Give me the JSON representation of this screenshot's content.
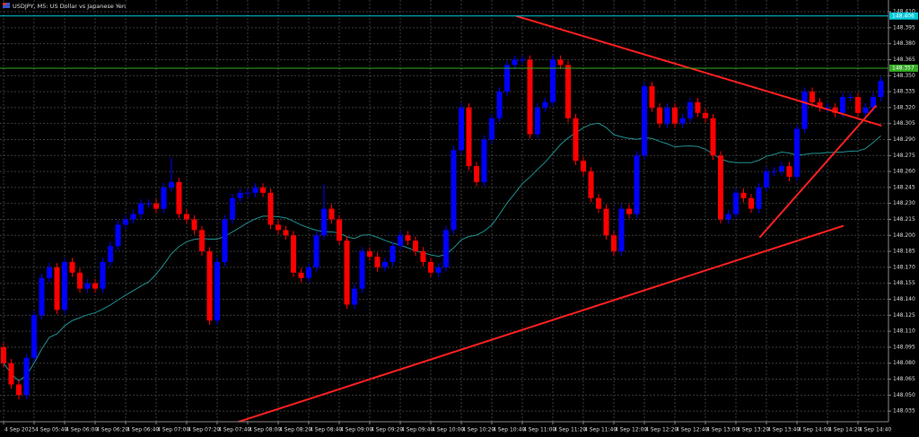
{
  "chart_data": {
    "type": "candlestick",
    "title": "USDJPY, M5:  US Dollar vs Japanese Yen",
    "categories": [
      "4 Sep 2025",
      null,
      null,
      null,
      "4 Sep 05:40",
      null,
      null,
      null,
      "4 Sep 06:00",
      null,
      null,
      null,
      "4 Sep 06:20",
      null,
      null,
      null,
      "4 Sep 06:40",
      null,
      null,
      null,
      "4 Sep 07:00",
      null,
      null,
      null,
      "4 Sep 07:20",
      null,
      null,
      null,
      "4 Sep 07:40",
      null,
      null,
      null,
      "4 Sep 08:00",
      null,
      null,
      null,
      "4 Sep 08:20",
      null,
      null,
      null,
      "4 Sep 08:40",
      null,
      null,
      null,
      "4 Sep 09:00",
      null,
      null,
      null,
      "4 Sep 09:20",
      null,
      null,
      null,
      "4 Sep 09:40",
      null,
      null,
      null,
      "4 Sep 10:00",
      null,
      null,
      null,
      "4 Sep 10:20",
      null,
      null,
      null,
      "4 Sep 10:40",
      null,
      null,
      null,
      "4 Sep 11:00",
      null,
      null,
      null,
      "4 Sep 11:20",
      null,
      null,
      null,
      "4 Sep 11:40",
      null,
      null,
      null,
      "4 Sep 12:00",
      null,
      null,
      null,
      "4 Sep 12:20",
      null,
      null,
      null,
      "4 Sep 12:40",
      null,
      null,
      null,
      "4 Sep 13:00",
      null,
      null,
      null,
      "4 Sep 13:20",
      null,
      null,
      null,
      "4 Sep 13:40",
      null,
      null,
      null,
      "4 Sep 14:00",
      null,
      null,
      null,
      "4 Sep 14:20",
      null,
      null,
      null,
      "4 Sep 14:40",
      null,
      null,
      null
    ],
    "open": [
      148.095,
      148.08,
      148.06,
      148.05,
      148.085,
      148.125,
      148.16,
      148.17,
      148.13,
      148.175,
      148.165,
      148.15,
      148.155,
      148.15,
      148.175,
      148.19,
      148.21,
      148.215,
      148.22,
      148.23,
      148.23,
      148.225,
      148.245,
      148.25,
      148.22,
      148.215,
      148.205,
      148.185,
      148.12,
      148.175,
      148.215,
      148.235,
      148.24,
      148.24,
      148.245,
      148.24,
      148.21,
      148.205,
      148.2,
      148.165,
      148.16,
      148.17,
      148.2,
      148.225,
      148.215,
      148.195,
      148.135,
      148.15,
      148.185,
      148.18,
      148.17,
      148.175,
      148.19,
      148.2,
      148.195,
      148.185,
      148.175,
      148.165,
      148.17,
      148.205,
      148.28,
      148.32,
      148.265,
      148.25,
      148.29,
      148.31,
      148.335,
      148.36,
      148.365,
      148.365,
      148.295,
      148.32,
      148.325,
      148.365,
      148.36,
      148.31,
      148.27,
      148.26,
      148.235,
      148.225,
      148.2,
      148.185,
      148.225,
      148.22,
      148.275,
      148.34,
      148.32,
      148.305,
      148.32,
      148.305,
      148.31,
      148.325,
      148.315,
      148.31,
      148.275,
      148.215,
      148.22,
      148.24,
      148.235,
      148.225,
      148.245,
      148.26,
      148.26,
      148.265,
      148.255,
      148.3,
      148.335,
      148.325,
      148.32,
      148.32,
      148.315,
      148.33,
      148.33,
      148.315,
      148.32,
      148.33
    ],
    "high": [
      148.099,
      148.084,
      148.064,
      148.089,
      148.129,
      148.164,
      148.174,
      148.174,
      148.179,
      148.179,
      148.169,
      148.159,
      148.159,
      148.179,
      148.194,
      148.214,
      148.219,
      148.224,
      148.234,
      148.234,
      148.234,
      148.249,
      148.273,
      148.254,
      148.224,
      148.219,
      148.209,
      148.189,
      148.179,
      148.219,
      148.239,
      148.244,
      148.244,
      148.249,
      148.249,
      148.244,
      148.214,
      148.209,
      148.204,
      148.169,
      148.174,
      148.204,
      148.248,
      148.229,
      148.219,
      148.199,
      148.154,
      148.189,
      148.189,
      148.184,
      148.179,
      148.194,
      148.204,
      148.204,
      148.199,
      148.189,
      148.179,
      148.174,
      148.209,
      148.284,
      148.324,
      148.324,
      148.269,
      148.294,
      148.314,
      148.339,
      148.364,
      148.369,
      148.369,
      148.369,
      148.324,
      148.329,
      148.369,
      148.369,
      148.364,
      148.314,
      148.274,
      148.264,
      148.239,
      148.229,
      148.204,
      148.229,
      148.229,
      148.279,
      148.344,
      148.344,
      148.324,
      148.324,
      148.324,
      148.314,
      148.329,
      148.329,
      148.319,
      148.314,
      148.279,
      148.224,
      148.244,
      148.244,
      148.239,
      148.249,
      148.264,
      148.264,
      148.269,
      148.269,
      148.304,
      148.339,
      148.339,
      148.329,
      148.324,
      148.324,
      148.334,
      148.334,
      148.334,
      148.324,
      148.334,
      148.349
    ],
    "low": [
      148.076,
      148.056,
      148.046,
      148.046,
      148.081,
      148.121,
      148.156,
      148.126,
      148.126,
      148.161,
      148.146,
      148.146,
      148.146,
      148.146,
      148.171,
      148.186,
      148.206,
      148.211,
      148.216,
      148.226,
      148.221,
      148.221,
      148.241,
      148.216,
      148.211,
      148.201,
      148.181,
      148.116,
      148.116,
      148.171,
      148.211,
      148.231,
      148.236,
      148.236,
      148.236,
      148.206,
      148.201,
      148.196,
      148.161,
      148.156,
      148.156,
      148.166,
      148.196,
      148.211,
      148.191,
      148.131,
      148.131,
      148.146,
      148.176,
      148.166,
      148.166,
      148.171,
      148.186,
      148.191,
      148.181,
      148.171,
      148.161,
      148.161,
      148.166,
      148.201,
      148.276,
      148.261,
      148.246,
      148.246,
      148.286,
      148.306,
      148.331,
      148.356,
      148.361,
      148.291,
      148.291,
      148.316,
      148.321,
      148.356,
      148.306,
      148.266,
      148.256,
      148.231,
      148.221,
      148.196,
      148.181,
      148.181,
      148.216,
      148.216,
      148.271,
      148.316,
      148.301,
      148.301,
      148.301,
      148.301,
      148.306,
      148.311,
      148.306,
      148.271,
      148.211,
      148.211,
      148.216,
      148.231,
      148.221,
      148.221,
      148.241,
      148.256,
      148.256,
      148.251,
      148.251,
      148.296,
      148.321,
      148.316,
      148.316,
      148.311,
      148.311,
      148.326,
      148.311,
      148.311,
      148.316,
      148.326
    ],
    "close": [
      148.08,
      148.06,
      148.05,
      148.085,
      148.125,
      148.16,
      148.17,
      148.13,
      148.175,
      148.165,
      148.15,
      148.155,
      148.15,
      148.175,
      148.19,
      148.21,
      148.215,
      148.22,
      148.23,
      148.23,
      148.225,
      148.245,
      148.25,
      148.22,
      148.215,
      148.205,
      148.185,
      148.12,
      148.175,
      148.215,
      148.235,
      148.24,
      148.24,
      148.245,
      148.24,
      148.21,
      148.205,
      148.2,
      148.165,
      148.16,
      148.17,
      148.2,
      148.225,
      148.215,
      148.195,
      148.135,
      148.15,
      148.185,
      148.18,
      148.17,
      148.175,
      148.19,
      148.2,
      148.195,
      148.185,
      148.175,
      148.165,
      148.17,
      148.205,
      148.28,
      148.32,
      148.265,
      148.25,
      148.29,
      148.31,
      148.335,
      148.36,
      148.365,
      148.365,
      148.295,
      148.32,
      148.325,
      148.365,
      148.36,
      148.31,
      148.27,
      148.26,
      148.235,
      148.225,
      148.2,
      148.185,
      148.225,
      148.22,
      148.275,
      148.34,
      148.32,
      148.305,
      148.32,
      148.305,
      148.31,
      148.325,
      148.315,
      148.31,
      148.275,
      148.215,
      148.22,
      148.24,
      148.235,
      148.225,
      148.245,
      148.26,
      148.26,
      148.265,
      148.255,
      148.3,
      148.335,
      148.325,
      148.32,
      148.32,
      148.315,
      148.33,
      148.33,
      148.315,
      148.32,
      148.33,
      148.345
    ],
    "up_color": "#0000ff",
    "down_color": "#ff0000",
    "ylim": [
      148.025,
      148.421
    ],
    "yticks": [
      148.035,
      {
        "value": 148.05,
        "label": "148.050"
      },
      148.065,
      {
        "value": 148.08,
        "label": "148.080"
      },
      148.095,
      {
        "value": 148.11,
        "label": "148.110"
      },
      148.125,
      {
        "value": 148.14,
        "label": "148.140"
      },
      148.155,
      {
        "value": 148.17,
        "label": "148.170"
      },
      148.185,
      {
        "value": 148.2,
        "label": "148.200"
      },
      148.215,
      {
        "value": 148.23,
        "label": "148.230"
      },
      148.245,
      {
        "value": 148.26,
        "label": "148.260"
      },
      148.275,
      {
        "value": 148.29,
        "label": "148.290"
      },
      148.305,
      {
        "value": 148.32,
        "label": "148.320"
      },
      148.335,
      {
        "value": 148.35,
        "label": "148.350"
      },
      148.365,
      {
        "value": 148.38,
        "label": "148.380"
      },
      148.395,
      {
        "value": 148.41,
        "label": "148.410"
      }
    ],
    "grid": true,
    "hlines": [
      {
        "value": 148.406,
        "label": "148.406",
        "color": "#00c8d8"
      },
      {
        "value": 148.357,
        "label": "148.357",
        "color": "#33aa22"
      }
    ],
    "trendlines": [
      {
        "x": [
          67.2,
          115.1
        ],
        "y": [
          148.406,
          148.303
        ],
        "color": "#ff2020"
      },
      {
        "x": [
          27.8,
          110.1
        ],
        "y": [
          148.018,
          148.209
        ],
        "color": "#ff2020"
      },
      {
        "x": [
          99.1,
          114.4
        ],
        "y": [
          148.198,
          148.322
        ],
        "color": "#ff2020"
      }
    ]
  }
}
